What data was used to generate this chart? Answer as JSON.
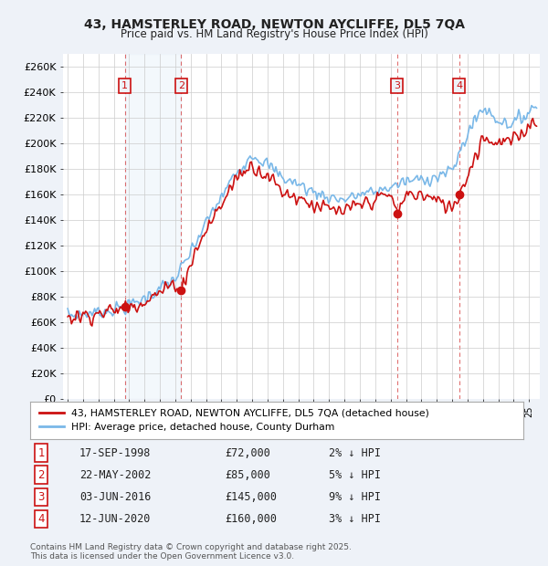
{
  "title_line1": "43, HAMSTERLEY ROAD, NEWTON AYCLIFFE, DL5 7QA",
  "title_line2": "Price paid vs. HM Land Registry's House Price Index (HPI)",
  "xlim": [
    1994.7,
    2025.7
  ],
  "ylim": [
    0,
    270000
  ],
  "yticks": [
    0,
    20000,
    40000,
    60000,
    80000,
    100000,
    120000,
    140000,
    160000,
    180000,
    200000,
    220000,
    240000,
    260000
  ],
  "ytick_labels": [
    "£0",
    "£20K",
    "£40K",
    "£60K",
    "£80K",
    "£100K",
    "£120K",
    "£140K",
    "£160K",
    "£180K",
    "£200K",
    "£220K",
    "£240K",
    "£260K"
  ],
  "hpi_color": "#7ab8e8",
  "price_color": "#cc1111",
  "purchases": [
    {
      "num": 1,
      "year": 1998.72,
      "price": 72000,
      "date": "17-SEP-1998",
      "pct": "2%",
      "dir": "↓"
    },
    {
      "num": 2,
      "year": 2002.39,
      "price": 85000,
      "date": "22-MAY-2002",
      "pct": "5%",
      "dir": "↓"
    },
    {
      "num": 3,
      "year": 2016.42,
      "price": 145000,
      "date": "03-JUN-2016",
      "pct": "9%",
      "dir": "↓"
    },
    {
      "num": 4,
      "year": 2020.45,
      "price": 160000,
      "date": "12-JUN-2020",
      "pct": "3%",
      "dir": "↓"
    }
  ],
  "legend_label1": "43, HAMSTERLEY ROAD, NEWTON AYCLIFFE, DL5 7QA (detached house)",
  "legend_label2": "HPI: Average price, detached house, County Durham",
  "footer_line1": "Contains HM Land Registry data © Crown copyright and database right 2025.",
  "footer_line2": "This data is licensed under the Open Government Licence v3.0.",
  "background_color": "#eef2f8",
  "plot_bg_color": "#ffffff"
}
